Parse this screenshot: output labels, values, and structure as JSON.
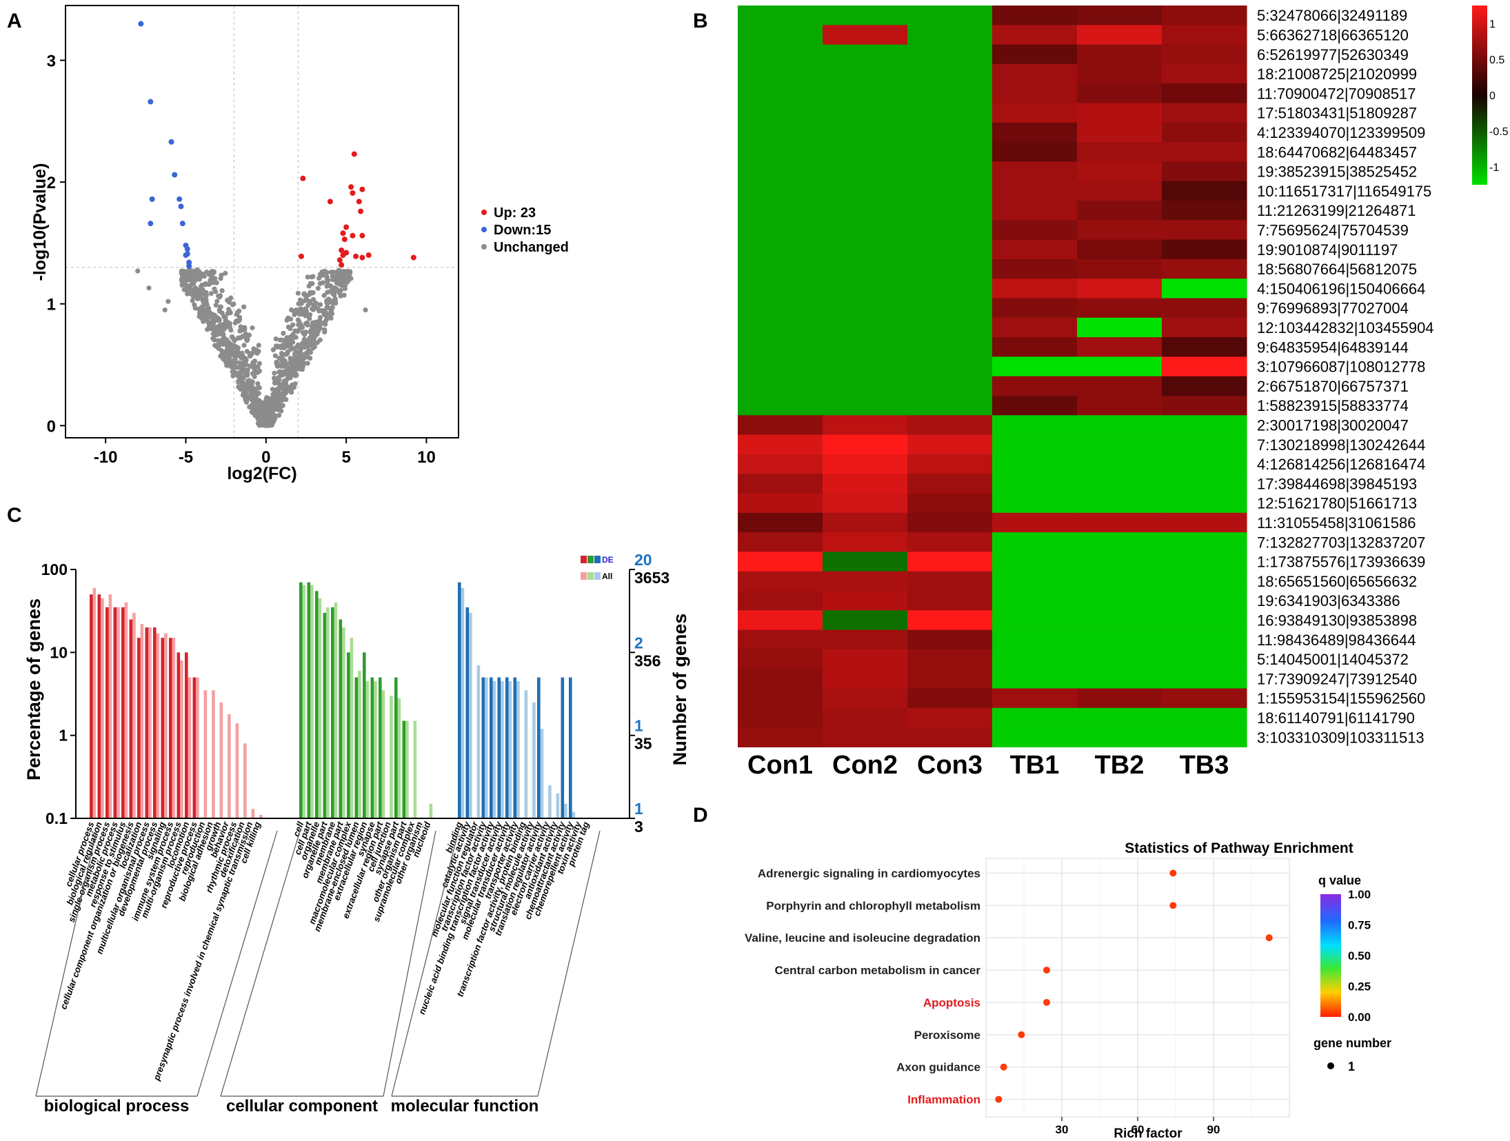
{
  "colors": {
    "up": "#e41a1c",
    "down": "#3a66d6",
    "unchanged": "#8c8c8c",
    "heat_high": "#ff1a1a",
    "heat_mid": "#1a0000",
    "heat_low": "#00e000",
    "bp_dark": "#d3242c",
    "bp_light": "#f4a0a2",
    "cc_dark": "#2f9c2f",
    "cc_light": "#a9dd93",
    "mf_dark": "#1f6fb4",
    "mf_light": "#a8cbe6",
    "highlight_text": "#e41a1c",
    "de_label": "#2323d6",
    "num_blue": "#1b73c4"
  },
  "panels": {
    "a": {
      "letter": "A"
    },
    "b": {
      "letter": "B"
    },
    "c": {
      "letter": "C"
    },
    "d": {
      "letter": "D"
    }
  },
  "chart_data": [
    {
      "id": "volcano",
      "type": "scatter",
      "xlabel": "log2(FC)",
      "ylabel": "-log10(Pvalue)",
      "xlim": [
        -12.5,
        12
      ],
      "ylim": [
        -0.1,
        3.45
      ],
      "xticks": [
        -10,
        -5,
        0,
        5,
        10
      ],
      "yticks": [
        0,
        1,
        2,
        3
      ],
      "threshold_fc": 2,
      "threshold_p": 1.3,
      "legend": [
        {
          "key": "up",
          "label": "Up: 23"
        },
        {
          "key": "down",
          "label": "Down:15"
        },
        {
          "key": "unchanged",
          "label": "Unchanged"
        }
      ],
      "up_points": [
        [
          5.5,
          2.23
        ],
        [
          2.3,
          2.03
        ],
        [
          5.3,
          1.96
        ],
        [
          6.0,
          1.94
        ],
        [
          5.4,
          1.91
        ],
        [
          4.0,
          1.84
        ],
        [
          5.8,
          1.84
        ],
        [
          5.9,
          1.76
        ],
        [
          5.0,
          1.63
        ],
        [
          4.8,
          1.58
        ],
        [
          5.4,
          1.56
        ],
        [
          6.0,
          1.56
        ],
        [
          4.9,
          1.53
        ],
        [
          4.7,
          1.44
        ],
        [
          4.8,
          1.4
        ],
        [
          2.2,
          1.39
        ],
        [
          5.6,
          1.39
        ],
        [
          6.4,
          1.4
        ],
        [
          9.2,
          1.38
        ],
        [
          4.6,
          1.36
        ],
        [
          5.0,
          1.42
        ],
        [
          4.7,
          1.32
        ],
        [
          6.0,
          1.38
        ]
      ],
      "down_points": [
        [
          -7.8,
          3.3
        ],
        [
          -7.2,
          2.66
        ],
        [
          -5.9,
          2.33
        ],
        [
          -5.7,
          2.06
        ],
        [
          -7.1,
          1.86
        ],
        [
          -5.4,
          1.86
        ],
        [
          -5.3,
          1.8
        ],
        [
          -7.2,
          1.66
        ],
        [
          -5.2,
          1.66
        ],
        [
          -5.0,
          1.48
        ],
        [
          -4.9,
          1.45
        ],
        [
          -4.9,
          1.41
        ],
        [
          -4.8,
          1.34
        ],
        [
          -4.8,
          1.31
        ],
        [
          -5.0,
          1.4
        ]
      ]
    },
    {
      "id": "heatmap",
      "type": "heatmap",
      "columns": [
        "Con1",
        "Con2",
        "Con3",
        "TB1",
        "TB2",
        "TB3"
      ],
      "rows": [
        "5:32478066|32491189",
        "5:66362718|66365120",
        "6:52619977|52630349",
        "18:21008725|21020999",
        "11:70900472|70908517",
        "17:51803431|51809287",
        "4:123394070|123399509",
        "18:64470682|64483457",
        "19:38523915|38525452",
        "10:116517317|116549175",
        "11:21263199|21264871",
        "7:75695624|75704539",
        "19:9010874|9011197",
        "18:56807664|56812075",
        "4:150406196|150406664",
        "9:76996893|77027004",
        "12:103442832|103455904",
        "9:64835954|64839144",
        "3:107966087|108012778",
        "2:66751870|66757371",
        "1:58823915|58833774",
        "2:30017198|30020047",
        "7:130218998|130242644",
        "4:126814256|126816474",
        "17:39844698|39845193",
        "12:51621780|51661713",
        "11:31055458|31061586",
        "7:132827703|132837207",
        "1:173875576|173936639",
        "18:65651560|65656632",
        "19:6341903|6343386",
        "16:93849130|93853898",
        "11:98436489|98436644",
        "5:14045001|14045372",
        "17:73909247|73912540",
        "1:155953154|155962560",
        "18:61140791|61141790",
        "3:103310309|103311513"
      ],
      "values": [
        [
          -0.9,
          -0.9,
          -0.9,
          0.45,
          0.5,
          0.6
        ],
        [
          -0.9,
          0.85,
          -0.9,
          0.75,
          1.0,
          0.7
        ],
        [
          -0.9,
          -0.9,
          -0.9,
          0.4,
          0.6,
          0.65
        ],
        [
          -0.9,
          -0.9,
          -0.9,
          0.7,
          0.6,
          0.7
        ],
        [
          -0.9,
          -0.9,
          -0.9,
          0.7,
          0.55,
          0.45
        ],
        [
          -0.9,
          -0.9,
          -0.9,
          0.75,
          0.8,
          0.7
        ],
        [
          -0.9,
          -0.9,
          -0.9,
          0.45,
          0.8,
          0.6
        ],
        [
          -0.9,
          -0.9,
          -0.9,
          0.4,
          0.7,
          0.7
        ],
        [
          -0.9,
          -0.9,
          -0.9,
          0.7,
          0.75,
          0.55
        ],
        [
          -0.9,
          -0.9,
          -0.9,
          0.7,
          0.7,
          0.3
        ],
        [
          -0.9,
          -0.9,
          -0.9,
          0.7,
          0.55,
          0.4
        ],
        [
          -0.9,
          -0.9,
          -0.9,
          0.55,
          0.65,
          0.65
        ],
        [
          -0.9,
          -0.9,
          -0.9,
          0.7,
          0.5,
          0.35
        ],
        [
          -0.9,
          -0.9,
          -0.9,
          0.55,
          0.6,
          0.65
        ],
        [
          -0.9,
          -0.9,
          -0.9,
          0.85,
          0.95,
          -1.2
        ],
        [
          -0.9,
          -0.9,
          -0.9,
          0.55,
          0.6,
          0.6
        ],
        [
          -0.9,
          -0.9,
          -0.9,
          0.7,
          -1.2,
          0.7
        ],
        [
          -0.9,
          -0.9,
          -0.9,
          0.5,
          0.7,
          0.3
        ],
        [
          -0.9,
          -0.9,
          -0.9,
          -1.2,
          -1.2,
          1.3
        ],
        [
          -0.9,
          -0.9,
          -0.9,
          0.6,
          0.6,
          0.3
        ],
        [
          -0.9,
          -0.9,
          -0.9,
          0.4,
          0.6,
          0.55
        ],
        [
          0.6,
          0.85,
          0.75,
          -1.1,
          -1.1,
          -1.1
        ],
        [
          1.0,
          1.2,
          1.0,
          -1.1,
          -1.1,
          -1.1
        ],
        [
          0.9,
          1.1,
          0.85,
          -1.1,
          -1.1,
          -1.1
        ],
        [
          0.7,
          1.0,
          0.7,
          -1.1,
          -1.1,
          -1.1
        ],
        [
          0.8,
          0.95,
          0.6,
          -1.1,
          -1.1,
          -1.1
        ],
        [
          0.45,
          0.75,
          0.55,
          0.8,
          0.8,
          0.8
        ],
        [
          0.7,
          0.85,
          0.75,
          -1.1,
          -1.1,
          -1.1
        ],
        [
          1.2,
          -0.6,
          1.2,
          -1.1,
          -1.1,
          -1.1
        ],
        [
          0.75,
          0.75,
          0.7,
          -1.1,
          -1.1,
          -1.1
        ],
        [
          0.7,
          0.8,
          0.7,
          -1.1,
          -1.1,
          -1.1
        ],
        [
          1.1,
          -0.6,
          1.3,
          -1.1,
          -1.1,
          -1.1
        ],
        [
          0.7,
          0.7,
          0.55,
          -1.1,
          -1.1,
          -1.1
        ],
        [
          0.65,
          0.8,
          0.65,
          -1.1,
          -1.1,
          -1.1
        ],
        [
          0.6,
          0.8,
          0.65,
          -1.1,
          -1.1,
          -1.1
        ],
        [
          0.6,
          0.75,
          0.55,
          0.7,
          0.6,
          0.65
        ],
        [
          0.6,
          0.7,
          0.75,
          -1.1,
          -1.1,
          -1.1
        ],
        [
          0.65,
          0.7,
          0.7,
          -1.1,
          -1.1,
          -1.1
        ]
      ],
      "colorbar_ticks": [
        1,
        0.5,
        0,
        -0.5,
        -1
      ],
      "colorbar_labels": [
        "1",
        "0.5",
        "0",
        "-0.5",
        "-1"
      ]
    },
    {
      "id": "go",
      "type": "bar",
      "ylabel": "Percentage of genes",
      "y2label": "Number of genes",
      "yscale": "log",
      "ylim": [
        0.1,
        100
      ],
      "yticks": [
        100,
        10,
        1,
        0.1
      ],
      "ytick_labels": [
        "100",
        "10",
        "1",
        "0.1"
      ],
      "right_de_ticks": [
        {
          "value": 100,
          "label": "20"
        },
        {
          "value": 10,
          "label": "2"
        },
        {
          "value": 1,
          "label": "1"
        },
        {
          "value": 0.1,
          "label": "1"
        }
      ],
      "right_all_ticks": [
        {
          "value": 100,
          "label": "3653"
        },
        {
          "value": 10,
          "label": "356"
        },
        {
          "value": 1,
          "label": "35"
        },
        {
          "value": 0.1,
          "label": "3"
        }
      ],
      "legend": [
        {
          "key": "de",
          "label": "DE"
        },
        {
          "key": "all",
          "label": "All"
        }
      ],
      "groups": [
        {
          "name": "biological process",
          "key": "bp",
          "categories": [
            "cellular process",
            "biological regulation",
            "single-organism process",
            "metabolic process",
            "response to stimulus",
            "cellular component organization or biogenesis",
            "localization",
            "multicellular organismal process",
            "developmental process",
            "signaling",
            "immune system process",
            "multi-organism process",
            "locomotion",
            "reproductive process",
            "reproduction",
            "biological adhesion",
            "growth",
            "behavior",
            "rhythmic process",
            "detoxification",
            "presynaptic process involved in chemical synaptic transmission",
            "cell killing"
          ],
          "de": [
            50,
            50,
            35,
            35,
            35,
            25,
            15,
            20,
            20,
            15,
            15,
            10,
            10,
            5,
            0,
            0,
            0,
            0,
            0,
            0,
            0,
            0
          ],
          "all": [
            60,
            45,
            50,
            35,
            40,
            30,
            22,
            20,
            17,
            17,
            15,
            8,
            5,
            5,
            3.5,
            3.5,
            2.5,
            1.8,
            1.4,
            0.8,
            0.13,
            0.11
          ]
        },
        {
          "name": "cellular component",
          "key": "cc",
          "categories": [
            "cell",
            "cell part",
            "organelle",
            "organelle part",
            "membrane",
            "membrane part",
            "macromolecular complex",
            "membrane-enclosed lumen",
            "extracellular region",
            "synapse",
            "extracellular region part",
            "cell junction",
            "synapse part",
            "other organism part",
            "supramolecular complex",
            "other organism",
            "nucleoid"
          ],
          "de": [
            70,
            70,
            55,
            30,
            35,
            25,
            10,
            5,
            10,
            5,
            5,
            0,
            5,
            1.5,
            0,
            0,
            0
          ],
          "all": [
            65,
            65,
            45,
            35,
            40,
            20,
            15,
            6,
            4.5,
            4.5,
            3.5,
            3,
            2.8,
            1.5,
            1.5,
            0,
            0.15
          ]
        },
        {
          "name": "molecular function",
          "key": "mf",
          "categories": [
            "binding",
            "catalytic activity",
            "molecular function regulator",
            "transcription factor activity",
            "nucleic acid binding transcription factor activity",
            "signal transducer activity",
            "molecular transducer activity",
            "transporter activity",
            "transcription factor activity, protein binding",
            "structural molecule activity",
            "translation regulator activity",
            "electron carrier activity",
            "antioxidant activity",
            "chemoattractant activity",
            "chemorepellent activity",
            "toxin activity",
            "protein tag"
          ],
          "de": [
            70,
            35,
            0,
            5,
            5,
            5,
            5,
            5,
            0,
            0,
            5,
            0,
            0,
            5,
            5,
            0,
            0
          ],
          "all": [
            60,
            30,
            7,
            5,
            4.5,
            4.5,
            4.5,
            4.5,
            3.5,
            2.5,
            1.2,
            0.25,
            0.2,
            0.15,
            0.12,
            0,
            0
          ]
        }
      ]
    },
    {
      "id": "pathway",
      "type": "scatter",
      "title": "Statistics of Pathway Enrichment",
      "xlabel": "Rich factor",
      "xlim": [
        0,
        120
      ],
      "xticks": [
        30,
        60,
        90
      ],
      "pathways": [
        {
          "name": "Adrenergic signaling in cardiomyocytes",
          "rich_factor": 74,
          "qvalue": 0.05,
          "gene_number": 1,
          "highlight": false
        },
        {
          "name": "Porphyrin and chlorophyll metabolism",
          "rich_factor": 74,
          "qvalue": 0.05,
          "gene_number": 1,
          "highlight": false
        },
        {
          "name": "Valine, leucine and isoleucine degradation",
          "rich_factor": 112,
          "qvalue": 0.05,
          "gene_number": 1,
          "highlight": false
        },
        {
          "name": "Central carbon metabolism in cancer",
          "rich_factor": 24,
          "qvalue": 0.05,
          "gene_number": 1,
          "highlight": false
        },
        {
          "name": "Apoptosis",
          "rich_factor": 24,
          "qvalue": 0.05,
          "gene_number": 1,
          "highlight": true
        },
        {
          "name": "Peroxisome",
          "rich_factor": 14,
          "qvalue": 0.05,
          "gene_number": 1,
          "highlight": false
        },
        {
          "name": "Axon guidance",
          "rich_factor": 7,
          "qvalue": 0.05,
          "gene_number": 1,
          "highlight": false
        },
        {
          "name": "Inflammation",
          "rich_factor": 5,
          "qvalue": 0.05,
          "gene_number": 1,
          "highlight": true
        }
      ],
      "qvalue_legend": {
        "title": "q value",
        "ticks": [
          1.0,
          0.75,
          0.5,
          0.25,
          0.0
        ],
        "labels": [
          "1.00",
          "0.75",
          "0.50",
          "0.25",
          "0.00"
        ]
      },
      "size_legend": {
        "title": "gene number",
        "label": "1"
      }
    }
  ]
}
